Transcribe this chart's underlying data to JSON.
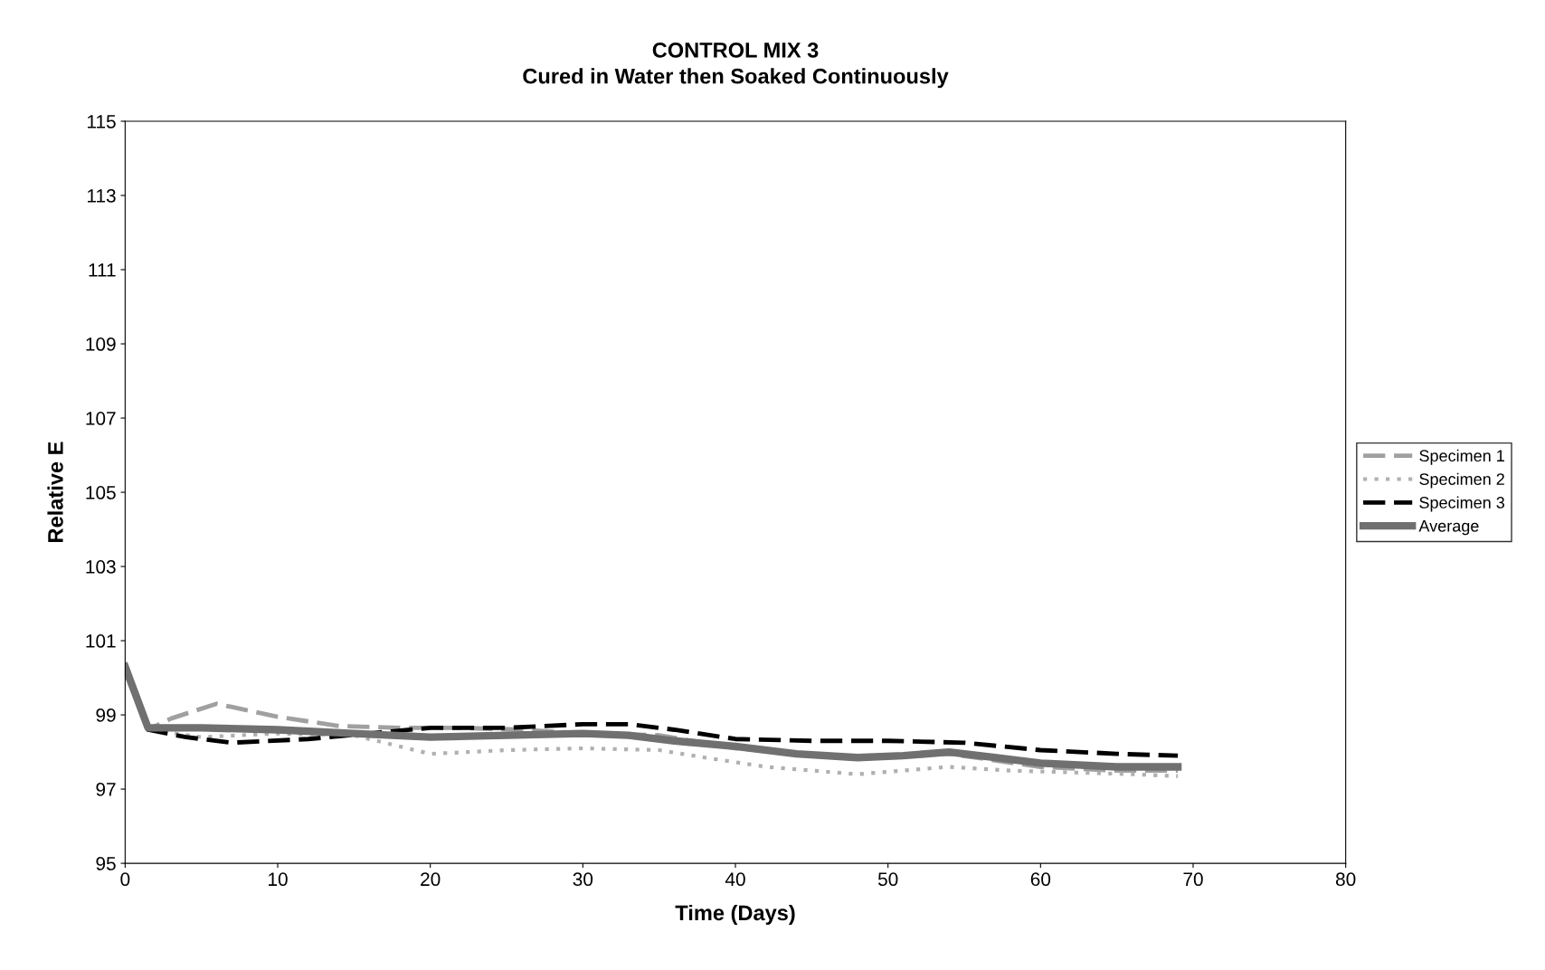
{
  "chart_data": {
    "type": "line",
    "title": "CONTROL MIX 3",
    "subtitle": "Cured in Water then Soaked Continuously",
    "xlabel": "Time (Days)",
    "ylabel": "Relative E",
    "xlim": [
      0,
      80
    ],
    "xticks": [
      0,
      10,
      20,
      30,
      40,
      50,
      60,
      70,
      80
    ],
    "ylim": [
      95,
      115
    ],
    "yticks": [
      95,
      97,
      99,
      101,
      103,
      105,
      107,
      109,
      111,
      113,
      115
    ],
    "grid": false,
    "legend": "right",
    "marker": "none",
    "series": [
      {
        "name": "Specimen 1",
        "color": "#a0a0a0",
        "line_style": "dashed",
        "x": [
          0,
          1.5,
          3,
          6,
          10,
          14,
          18,
          22,
          26,
          30,
          35,
          40,
          48,
          54,
          60,
          65,
          69
        ],
        "values": [
          100.4,
          98.6,
          98.9,
          99.3,
          98.95,
          98.7,
          98.65,
          98.65,
          98.6,
          98.5,
          98.45,
          98.1,
          97.85,
          97.95,
          97.6,
          97.5,
          97.5
        ]
      },
      {
        "name": "Specimen 2",
        "color": "#b0b0b0",
        "line_style": "dotted",
        "x": [
          0,
          1.5,
          5,
          10,
          15,
          18,
          20,
          25,
          30,
          35,
          38,
          42,
          48,
          54,
          58,
          62,
          66,
          69
        ],
        "values": [
          100.2,
          98.6,
          98.4,
          98.5,
          98.45,
          98.15,
          97.95,
          98.05,
          98.1,
          98.05,
          97.85,
          97.6,
          97.4,
          97.6,
          97.5,
          97.45,
          97.4,
          97.35
        ]
      },
      {
        "name": "Specimen 3",
        "color": "#000000",
        "line_style": "dashed",
        "x": [
          0,
          1.5,
          4,
          7,
          12,
          16,
          20,
          25,
          30,
          33,
          36,
          40,
          45,
          50,
          55,
          60,
          65,
          69
        ],
        "values": [
          100.2,
          98.6,
          98.4,
          98.25,
          98.35,
          98.5,
          98.65,
          98.65,
          98.75,
          98.75,
          98.6,
          98.35,
          98.3,
          98.3,
          98.25,
          98.05,
          97.95,
          97.9
        ]
      },
      {
        "name": "Average",
        "color": "#707070",
        "line_style": "solid",
        "x": [
          0,
          1.5,
          5,
          10,
          15,
          20,
          25,
          30,
          33,
          36,
          40,
          44,
          48,
          51,
          54,
          57,
          60,
          65,
          69
        ],
        "values": [
          100.3,
          98.65,
          98.65,
          98.6,
          98.5,
          98.4,
          98.45,
          98.5,
          98.45,
          98.3,
          98.15,
          97.95,
          97.85,
          97.9,
          98.0,
          97.85,
          97.7,
          97.6,
          97.6
        ]
      }
    ]
  }
}
